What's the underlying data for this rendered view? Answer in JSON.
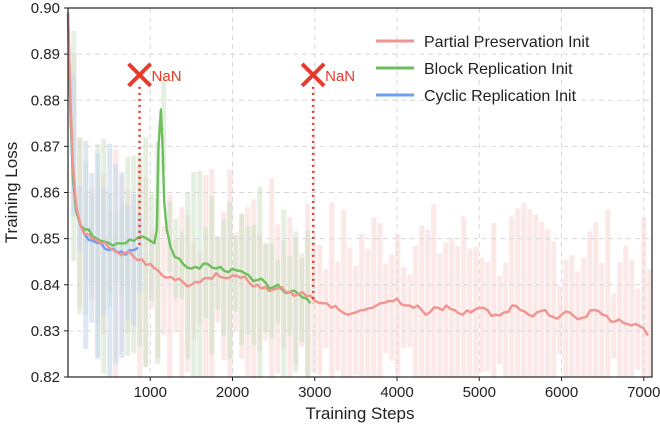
{
  "chart_data": {
    "type": "line",
    "title": "",
    "xlabel": "Training Steps",
    "ylabel": "Training Loss",
    "xlim": [
      0,
      7100
    ],
    "ylim": [
      0.82,
      0.9
    ],
    "x_ticks": [
      1000,
      2000,
      3000,
      4000,
      5000,
      6000,
      7000
    ],
    "y_ticks": [
      0.82,
      0.83,
      0.84,
      0.85,
      0.86,
      0.87,
      0.88,
      0.89,
      0.9
    ],
    "x_tick_labels": [
      "1000",
      "2000",
      "3000",
      "4000",
      "5000",
      "6000",
      "7000"
    ],
    "y_tick_labels": [
      "0.82",
      "0.83",
      "0.84",
      "0.85",
      "0.86",
      "0.87",
      "0.88",
      "0.89",
      "0.90"
    ],
    "grid": true,
    "legend_position": "top-right",
    "series": [
      {
        "name": "Partial Preservation Init",
        "color": "#f0948f",
        "x": [
          0,
          30,
          60,
          100,
          150,
          200,
          300,
          400,
          500,
          600,
          700,
          800,
          900,
          1000,
          1100,
          1200,
          1300,
          1400,
          1500,
          1600,
          1700,
          1800,
          1900,
          2000,
          2100,
          2200,
          2300,
          2400,
          2500,
          2600,
          2700,
          2800,
          2900,
          3000,
          3100,
          3200,
          3300,
          3400,
          3500,
          3600,
          3700,
          3800,
          3900,
          4000,
          4100,
          4200,
          4300,
          4400,
          4500,
          4600,
          4700,
          4800,
          4900,
          5000,
          5100,
          5200,
          5300,
          5400,
          5500,
          5600,
          5700,
          5800,
          5900,
          6000,
          6100,
          6200,
          6300,
          6400,
          6500,
          6600,
          6700,
          6800,
          6900,
          7000,
          7050
        ],
        "y": [
          0.899,
          0.88,
          0.866,
          0.857,
          0.853,
          0.851,
          0.85,
          0.849,
          0.848,
          0.847,
          0.847,
          0.846,
          0.8455,
          0.8445,
          0.843,
          0.8415,
          0.841,
          0.8405,
          0.84,
          0.8405,
          0.8415,
          0.8425,
          0.8415,
          0.842,
          0.8415,
          0.8405,
          0.84,
          0.8395,
          0.839,
          0.8395,
          0.8385,
          0.838,
          0.8375,
          0.8365,
          0.836,
          0.835,
          0.8345,
          0.8335,
          0.834,
          0.8345,
          0.835,
          0.836,
          0.8365,
          0.837,
          0.8355,
          0.835,
          0.8345,
          0.834,
          0.835,
          0.8355,
          0.8345,
          0.8335,
          0.834,
          0.835,
          0.8345,
          0.8335,
          0.834,
          0.8355,
          0.8345,
          0.8335,
          0.834,
          0.8345,
          0.833,
          0.8335,
          0.834,
          0.8325,
          0.833,
          0.8345,
          0.8335,
          0.832,
          0.8325,
          0.8315,
          0.8315,
          0.8305,
          0.829
        ]
      },
      {
        "name": "Block Replication Init",
        "color": "#6dbf5d",
        "x": [
          0,
          30,
          60,
          100,
          150,
          200,
          300,
          400,
          500,
          600,
          700,
          800,
          900,
          960,
          1000,
          1050,
          1080,
          1100,
          1130,
          1150,
          1170,
          1200,
          1250,
          1300,
          1400,
          1500,
          1600,
          1700,
          1800,
          1900,
          2000,
          2100,
          2200,
          2300,
          2400,
          2500,
          2600,
          2700,
          2800,
          2900,
          2950
        ],
        "y": [
          0.899,
          0.878,
          0.864,
          0.856,
          0.853,
          0.852,
          0.8505,
          0.8495,
          0.849,
          0.849,
          0.849,
          0.8495,
          0.8505,
          0.85,
          0.8495,
          0.849,
          0.852,
          0.87,
          0.878,
          0.87,
          0.858,
          0.852,
          0.848,
          0.846,
          0.8445,
          0.8435,
          0.8435,
          0.8445,
          0.8435,
          0.843,
          0.8435,
          0.843,
          0.842,
          0.841,
          0.8405,
          0.8395,
          0.839,
          0.8385,
          0.838,
          0.837,
          0.836
        ]
      },
      {
        "name": "Cyclic Replication Init",
        "color": "#6f9ef0",
        "x": [
          0,
          30,
          60,
          100,
          150,
          200,
          300,
          400,
          500,
          600,
          700,
          800,
          850
        ],
        "y": [
          0.898,
          0.877,
          0.863,
          0.856,
          0.853,
          0.851,
          0.8495,
          0.849,
          0.8475,
          0.847,
          0.8465,
          0.8475,
          0.848
        ]
      }
    ],
    "annotations": [
      {
        "text": "NaN",
        "x": 870,
        "y": 0.8855,
        "color": "#e8392a"
      },
      {
        "text": "NaN",
        "x": 2980,
        "y": 0.8855,
        "color": "#e8392a"
      }
    ]
  }
}
